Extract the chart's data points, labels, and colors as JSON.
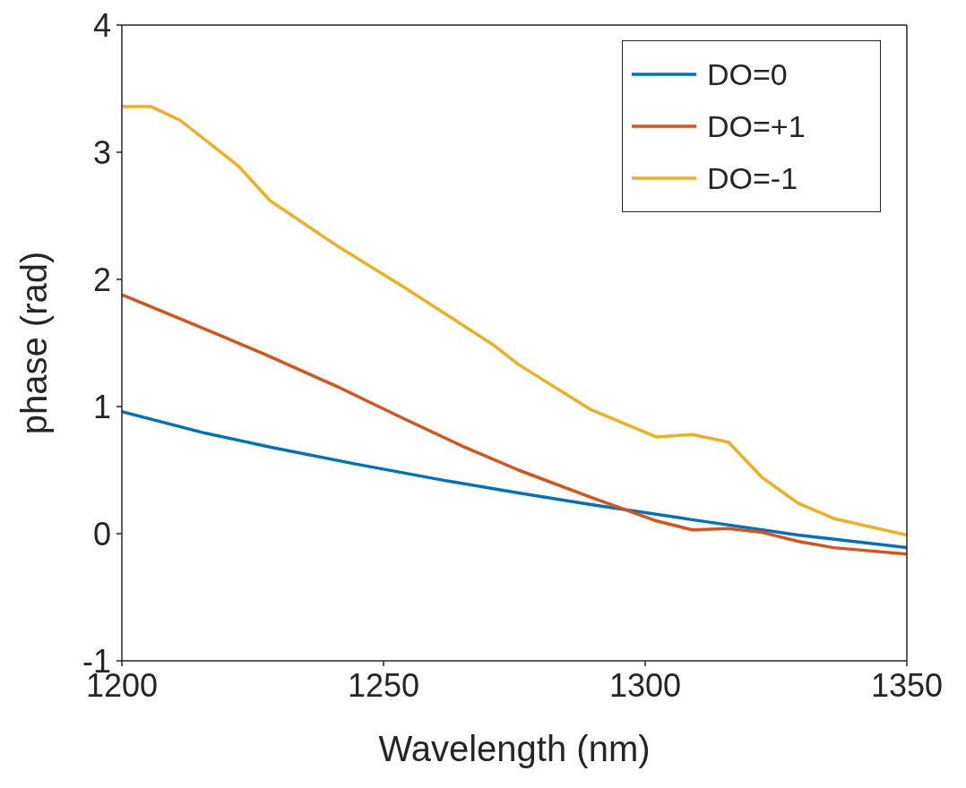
{
  "chart_data": {
    "type": "line",
    "xlabel": "Wavelength (nm)",
    "ylabel": "phase (rad)",
    "xlim": [
      1200,
      1350
    ],
    "xticks": [
      1200,
      1250,
      1300,
      1350
    ],
    "ylim": [
      -1,
      4
    ],
    "yticks": [
      -1,
      0,
      1,
      2,
      3,
      4
    ],
    "grid": false,
    "legend": "top right",
    "line_style": "solid",
    "marker": "none",
    "series": [
      {
        "name": "DO=0",
        "color": "#0072bd",
        "x": [
          1200,
          1216,
          1228.5,
          1244.4,
          1261.5,
          1275.8,
          1289.4,
          1309,
          1329.2,
          1350
        ],
        "values": [
          0.96,
          0.79,
          0.68,
          0.55,
          0.42,
          0.32,
          0.23,
          0.11,
          -0.01,
          -0.11
        ]
      },
      {
        "name": "DO=+1",
        "color": "#d95319",
        "x": [
          1200,
          1211.2,
          1227.4,
          1241,
          1253.6,
          1265,
          1275.8,
          1289.4,
          1302.2,
          1309,
          1315.9,
          1322.4,
          1329.2,
          1336,
          1350
        ],
        "values": [
          1.88,
          1.69,
          1.41,
          1.16,
          0.91,
          0.69,
          0.5,
          0.29,
          0.1,
          0.03,
          0.04,
          0.01,
          -0.06,
          -0.11,
          -0.16
        ]
      },
      {
        "name": "DO=-1",
        "color": "#edb120",
        "x": [
          1200,
          1205.5,
          1211.2,
          1222.3,
          1228.3,
          1240.9,
          1253.1,
          1270.8,
          1275.8,
          1289.4,
          1302.2,
          1309,
          1315.9,
          1322.4,
          1329.2,
          1336,
          1350
        ],
        "values": [
          3.36,
          3.36,
          3.25,
          2.89,
          2.62,
          2.27,
          1.96,
          1.49,
          1.33,
          0.98,
          0.76,
          0.78,
          0.72,
          0.44,
          0.24,
          0.12,
          -0.01
        ]
      }
    ]
  }
}
